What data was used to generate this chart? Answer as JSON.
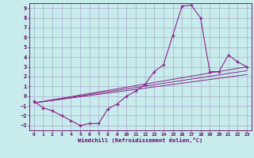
{
  "xlabel": "Windchill (Refroidissement éolien,°C)",
  "background_color": "#c8ecec",
  "grid_color": "#aaaacc",
  "line_color": "#882288",
  "xmin": 0,
  "xmax": 23,
  "ymin": -3,
  "ymax": 9,
  "x_ticks": [
    0,
    1,
    2,
    3,
    4,
    5,
    6,
    7,
    8,
    9,
    10,
    11,
    12,
    13,
    14,
    15,
    16,
    17,
    18,
    19,
    20,
    21,
    22,
    23
  ],
  "y_ticks": [
    -3,
    -2,
    -1,
    0,
    1,
    2,
    3,
    4,
    5,
    6,
    7,
    8,
    9
  ],
  "series1_x": [
    0,
    1,
    2,
    3,
    4,
    5,
    6,
    7,
    8,
    9,
    10,
    11,
    12,
    13,
    14,
    15,
    16,
    17,
    18,
    19,
    20,
    21,
    22,
    23
  ],
  "series1_y": [
    -0.5,
    -1.2,
    -1.5,
    -2.0,
    -2.5,
    -3.0,
    -2.8,
    -2.8,
    -1.3,
    -0.8,
    0.0,
    0.5,
    1.2,
    2.5,
    3.2,
    6.2,
    9.2,
    9.3,
    8.0,
    2.5,
    2.5,
    4.2,
    3.5,
    3.0
  ],
  "series2_x": [
    0,
    23
  ],
  "series2_y": [
    -0.7,
    3.0
  ],
  "series3_x": [
    0,
    23
  ],
  "series3_y": [
    -0.7,
    2.2
  ],
  "series4_x": [
    0,
    23
  ],
  "series4_y": [
    -0.7,
    2.6
  ]
}
